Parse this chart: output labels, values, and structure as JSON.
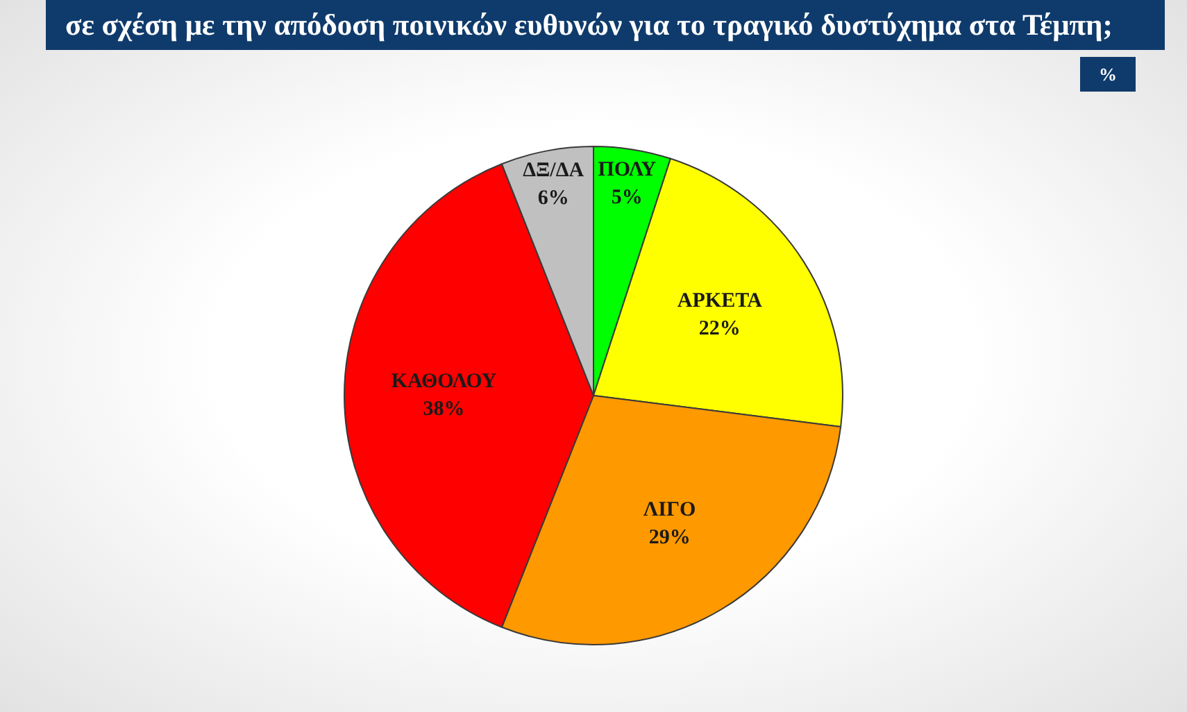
{
  "chart_data": {
    "type": "pie",
    "title": "σε σχέση με την απόδοση ποινικών ευθυνών για το τραγικό δυστύχημα στα Τέμπη;",
    "annotations": [
      "%"
    ],
    "categories": [
      "ΠΟΛΥ",
      "ΑΡΚΕΤΑ",
      "ΛΙΓΟ",
      "ΚΑΘΟΛΟΥ",
      "ΔΞ/ΔΑ"
    ],
    "values": [
      5,
      22,
      29,
      38,
      6
    ],
    "colors": [
      "#00ff00",
      "#ffff00",
      "#ff9900",
      "#ff0000",
      "#c0c0c0"
    ],
    "value_labels": [
      "5%",
      "22%",
      "29%",
      "38%",
      "6%"
    ],
    "legend": false
  }
}
